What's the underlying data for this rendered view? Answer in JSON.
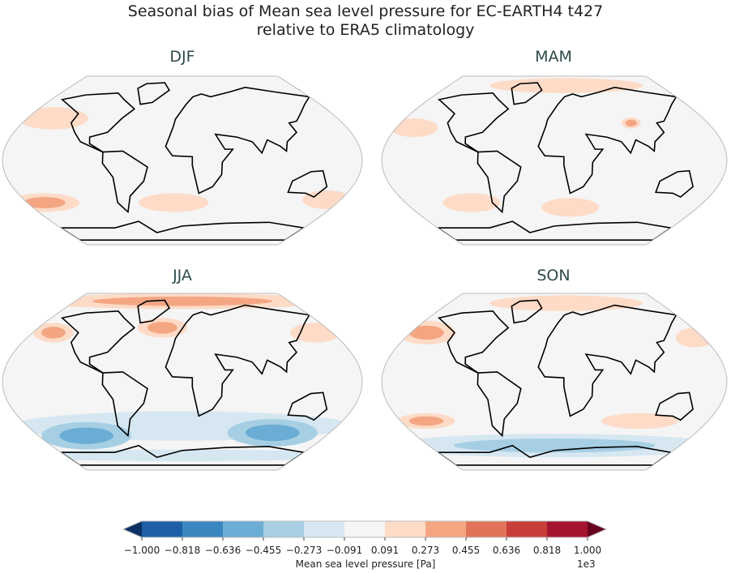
{
  "title_line1": "Seasonal bias of Mean sea level pressure for EC-EARTH4 t427",
  "title_line2": "relative to ERA5 climatology",
  "chart_data": {
    "type": "heatmap",
    "projection": "Robinson",
    "panels": [
      {
        "title": "DJF",
        "features": [
          {
            "lon": -150,
            "lat": 45,
            "rlon": 35,
            "rlat": 12,
            "value": 200
          },
          {
            "lon": -40,
            "lat": 50,
            "rlon": 30,
            "rlat": 12,
            "value": -150
          },
          {
            "lon": 60,
            "lat": 65,
            "rlon": 40,
            "rlat": 10,
            "value": -150
          },
          {
            "lon": -160,
            "lat": -45,
            "rlon": 35,
            "rlat": 10,
            "value": 300
          },
          {
            "lon": -10,
            "lat": -45,
            "rlon": 35,
            "rlat": 10,
            "value": 250
          },
          {
            "lon": 165,
            "lat": -42,
            "rlon": 25,
            "rlat": 10,
            "value": 200
          },
          {
            "lon": 90,
            "lat": -40,
            "rlon": 25,
            "rlat": 8,
            "value": -120
          },
          {
            "lon": 0,
            "lat": -70,
            "rlon": 170,
            "rlat": 8,
            "value": -150
          }
        ]
      },
      {
        "title": "MAM",
        "features": [
          {
            "lon": -160,
            "lat": 35,
            "rlon": 25,
            "rlat": 10,
            "value": 200
          },
          {
            "lon": 20,
            "lat": 80,
            "rlon": 80,
            "rlat": 8,
            "value": 200
          },
          {
            "lon": -40,
            "lat": 55,
            "rlon": 35,
            "rlat": 12,
            "value": -150
          },
          {
            "lon": 90,
            "lat": 40,
            "rlon": 10,
            "rlat": 6,
            "value": 350
          },
          {
            "lon": 20,
            "lat": -50,
            "rlon": 30,
            "rlat": 10,
            "value": 250
          },
          {
            "lon": -100,
            "lat": -45,
            "rlon": 30,
            "rlat": 10,
            "value": 200
          },
          {
            "lon": 150,
            "lat": -40,
            "rlon": 25,
            "rlat": 8,
            "value": 150
          },
          {
            "lon": 0,
            "lat": -68,
            "rlon": 170,
            "rlat": 6,
            "value": -150
          }
        ]
      },
      {
        "title": "JJA",
        "features": [
          {
            "lon": 0,
            "lat": 82,
            "rlon": 150,
            "rlat": 8,
            "value": 300
          },
          {
            "lon": -155,
            "lat": 50,
            "rlon": 20,
            "rlat": 10,
            "value": 350
          },
          {
            "lon": -25,
            "lat": 55,
            "rlon": 25,
            "rlat": 10,
            "value": 300
          },
          {
            "lon": 160,
            "lat": 50,
            "rlon": 25,
            "rlat": 10,
            "value": 200
          },
          {
            "lon": -120,
            "lat": -55,
            "rlon": 45,
            "rlat": 14,
            "value": -600
          },
          {
            "lon": 110,
            "lat": -52,
            "rlon": 45,
            "rlat": 14,
            "value": -550
          },
          {
            "lon": 0,
            "lat": -45,
            "rlon": 170,
            "rlat": 15,
            "value": -200
          },
          {
            "lon": 0,
            "lat": -75,
            "rlon": 170,
            "rlat": 6,
            "value": -250
          }
        ]
      },
      {
        "title": "SON",
        "features": [
          {
            "lon": -160,
            "lat": 50,
            "rlon": 30,
            "rlat": 12,
            "value": 300
          },
          {
            "lon": 20,
            "lat": 80,
            "rlon": 80,
            "rlat": 8,
            "value": 250
          },
          {
            "lon": 170,
            "lat": 45,
            "rlon": 20,
            "rlat": 10,
            "value": 250
          },
          {
            "lon": -150,
            "lat": -40,
            "rlon": 30,
            "rlat": 8,
            "value": 300
          },
          {
            "lon": 100,
            "lat": -40,
            "rlon": 40,
            "rlat": 8,
            "value": 250
          },
          {
            "lon": 0,
            "lat": -65,
            "rlon": 175,
            "rlat": 12,
            "value": -350
          },
          {
            "lon": 40,
            "lat": -50,
            "rlon": 60,
            "rlat": 6,
            "value": -150
          }
        ]
      }
    ],
    "colorbar": {
      "levels": [
        -1000,
        -818,
        -636,
        -455,
        -273,
        -91,
        91,
        273,
        455,
        636,
        818,
        1000
      ],
      "colors": [
        "#1f5fa8",
        "#3a87c0",
        "#6badd4",
        "#a6cfe4",
        "#d6e7f1",
        "#f5f5f5",
        "#fddbc7",
        "#f4a683",
        "#e2735a",
        "#c73e3a",
        "#a51530"
      ],
      "under": "#0a3163",
      "over": "#67001f",
      "tick_labels": [
        "−1.000",
        "−0.818",
        "−0.636",
        "−0.455",
        "−0.273",
        "−0.091",
        "0.091",
        "0.273",
        "0.455",
        "0.636",
        "0.818",
        "1.000"
      ],
      "label": "Mean sea level pressure [Pa]",
      "multiplier": "1e3"
    }
  }
}
